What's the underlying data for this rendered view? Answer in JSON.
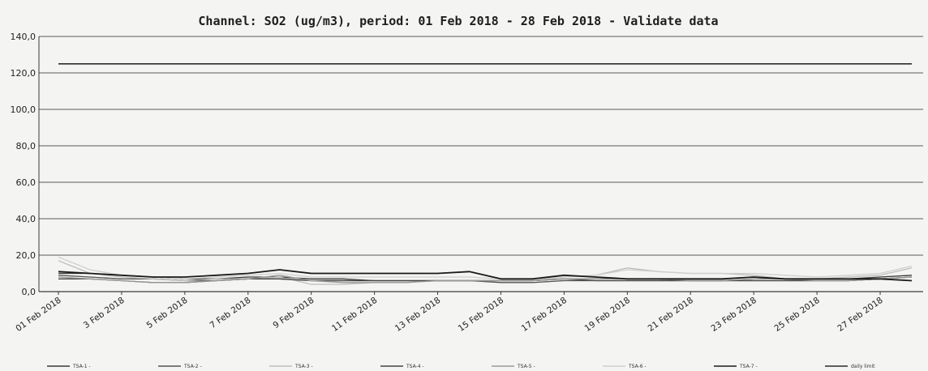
{
  "chart_data": {
    "type": "line",
    "title": "Channel: SO2 (ug/m3), period: 01 Feb 2018 - 28 Feb 2018 - Validate data",
    "xlabel": "",
    "ylabel": "",
    "ylim": [
      0,
      140
    ],
    "yticks": [
      "0,0",
      "20,0",
      "40,0",
      "60,0",
      "80,0",
      "100,0",
      "120,0",
      "140,0"
    ],
    "xticks": [
      "01 Feb 2018",
      "3 Feb 2018",
      "5 Feb 2018",
      "7 Feb 2018",
      "9 Feb 2018",
      "11 Feb 2018",
      "13 Feb 2018",
      "15 Feb 2018",
      "17 Feb 2018",
      "19 Feb 2018",
      "21 Feb 2018",
      "23 Feb 2018",
      "25 Feb 2018",
      "27 Feb 2018"
    ],
    "x": [
      "01 Feb 2018",
      "02 Feb 2018",
      "03 Feb 2018",
      "04 Feb 2018",
      "05 Feb 2018",
      "06 Feb 2018",
      "07 Feb 2018",
      "08 Feb 2018",
      "09 Feb 2018",
      "10 Feb 2018",
      "11 Feb 2018",
      "12 Feb 2018",
      "13 Feb 2018",
      "14 Feb 2018",
      "15 Feb 2018",
      "16 Feb 2018",
      "17 Feb 2018",
      "18 Feb 2018",
      "19 Feb 2018",
      "20 Feb 2018",
      "21 Feb 2018",
      "22 Feb 2018",
      "23 Feb 2018",
      "24 Feb 2018",
      "25 Feb 2018",
      "26 Feb 2018",
      "27 Feb 2018",
      "28 Feb 2018"
    ],
    "grid": true,
    "legend_position": "bottom",
    "series": [
      {
        "name": "TSA-1 -",
        "color": "#3a3a3a",
        "values": [
          10,
          10,
          9,
          8,
          7,
          7,
          8,
          8,
          7,
          7,
          6,
          6,
          6,
          6,
          6,
          6,
          7,
          7,
          7,
          7,
          6,
          6,
          7,
          7,
          7,
          7,
          8,
          9
        ]
      },
      {
        "name": "TSA-2 -",
        "color": "#555555",
        "values": [
          9,
          8,
          7,
          7,
          6,
          6,
          7,
          7,
          6,
          6,
          6,
          6,
          6,
          6,
          5,
          5,
          6,
          6,
          6,
          6,
          6,
          6,
          6,
          6,
          6,
          6,
          7,
          8
        ]
      },
      {
        "name": "TSA-3 -",
        "color": "#bdbdbd",
        "values": [
          17,
          10,
          8,
          7,
          6,
          7,
          7,
          8,
          4,
          4,
          5,
          5,
          6,
          6,
          6,
          6,
          8,
          9,
          13,
          11,
          10,
          10,
          9,
          7,
          7,
          8,
          9,
          13
        ]
      },
      {
        "name": "TSA-4 -",
        "color": "#444444",
        "values": [
          7,
          7,
          6,
          5,
          5,
          6,
          7,
          7,
          6,
          6,
          6,
          6,
          6,
          6,
          6,
          6,
          7,
          6,
          6,
          6,
          6,
          6,
          6,
          6,
          6,
          6,
          7,
          8
        ]
      },
      {
        "name": "TSA-5 -",
        "color": "#999999",
        "values": [
          8,
          7,
          6,
          5,
          5,
          6,
          7,
          9,
          6,
          5,
          5,
          5,
          6,
          6,
          6,
          6,
          7,
          7,
          7,
          7,
          6,
          6,
          7,
          7,
          6,
          6,
          7,
          8
        ]
      },
      {
        "name": "TSA-6 -",
        "color": "#cfcfcf",
        "values": [
          19,
          12,
          9,
          8,
          7,
          8,
          9,
          10,
          8,
          8,
          8,
          8,
          8,
          8,
          7,
          7,
          8,
          9,
          12,
          11,
          10,
          10,
          10,
          9,
          8,
          9,
          10,
          14
        ]
      },
      {
        "name": "TSA-7 -",
        "color": "#1a1a1a",
        "values": [
          11,
          10,
          9,
          8,
          8,
          9,
          10,
          12,
          10,
          10,
          10,
          10,
          10,
          11,
          7,
          7,
          9,
          8,
          7,
          7,
          7,
          7,
          8,
          7,
          7,
          7,
          7,
          6
        ]
      },
      {
        "name": "daily limit",
        "color": "#2b2b2b",
        "values": [
          125,
          125,
          125,
          125,
          125,
          125,
          125,
          125,
          125,
          125,
          125,
          125,
          125,
          125,
          125,
          125,
          125,
          125,
          125,
          125,
          125,
          125,
          125,
          125,
          125,
          125,
          125,
          125
        ]
      }
    ]
  }
}
